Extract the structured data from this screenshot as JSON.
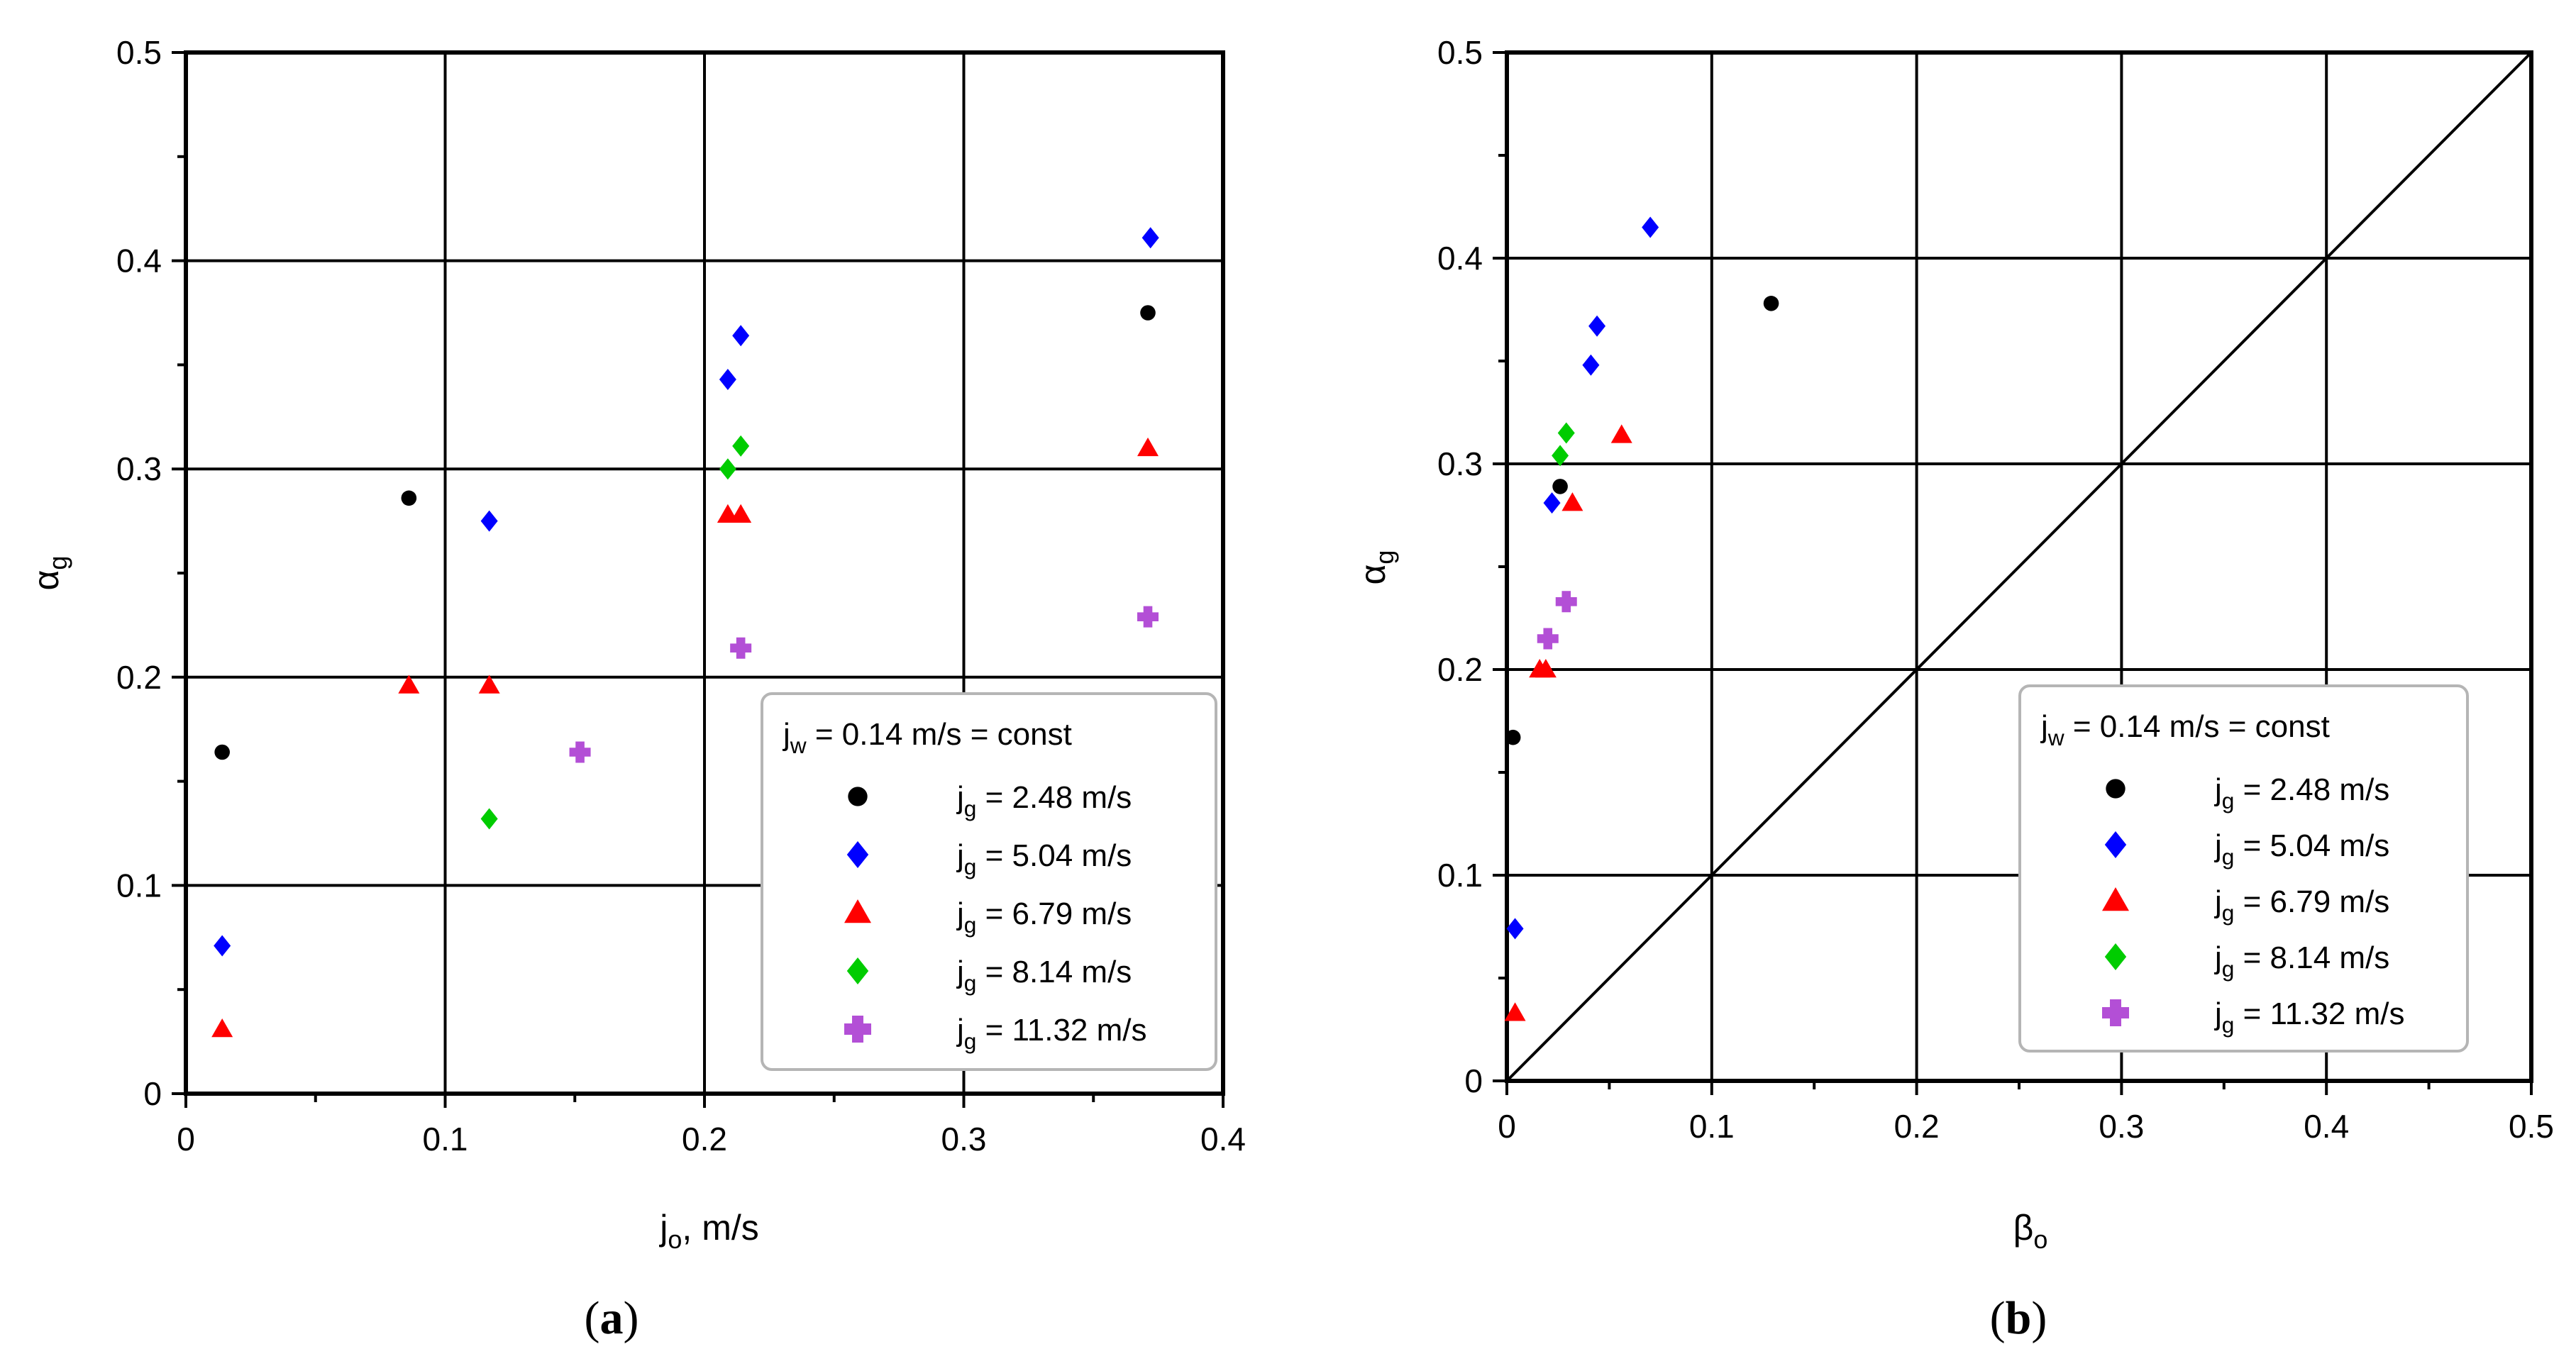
{
  "chart_data": [
    {
      "type": "scatter",
      "panel_label": "(a)",
      "xlabel": {
        "base": "j",
        "sub": "o",
        "rest": ", m/s"
      },
      "ylabel": {
        "base": "α",
        "sub": "g"
      },
      "xlim": [
        0,
        0.4
      ],
      "ylim": [
        0,
        0.5
      ],
      "xticks": [
        "0",
        "0.1",
        "0.2",
        "0.3",
        "0.4"
      ],
      "yticks": [
        "0",
        "0.1",
        "0.2",
        "0.3",
        "0.4",
        "0.5"
      ],
      "grid": true,
      "diagonal": false,
      "legend": {
        "placement": "lower-right",
        "header": {
          "base": "j",
          "sub": "w",
          "rest": " = 0.14 m/s = const"
        }
      },
      "series": [
        {
          "name": {
            "base": "j",
            "sub": "g",
            "rest": " = 2.48 m/s"
          },
          "marker": "circle",
          "color": "#000000",
          "points": [
            [
              0.014,
              0.164
            ],
            [
              0.086,
              0.286
            ],
            [
              0.371,
              0.375
            ]
          ]
        },
        {
          "name": {
            "base": "j",
            "sub": "g",
            "rest": " = 5.04 m/s"
          },
          "marker": "diamond",
          "color": "#0000ff",
          "points": [
            [
              0.014,
              0.071
            ],
            [
              0.117,
              0.275
            ],
            [
              0.209,
              0.343
            ],
            [
              0.214,
              0.364
            ],
            [
              0.372,
              0.411
            ]
          ]
        },
        {
          "name": {
            "base": "j",
            "sub": "g",
            "rest": " = 6.79 m/s"
          },
          "marker": "triangle",
          "color": "#ff0000",
          "points": [
            [
              0.014,
              0.031
            ],
            [
              0.086,
              0.196
            ],
            [
              0.117,
              0.196
            ],
            [
              0.209,
              0.278
            ],
            [
              0.214,
              0.278
            ],
            [
              0.371,
              0.31
            ]
          ]
        },
        {
          "name": {
            "base": "j",
            "sub": "g",
            "rest": " = 8.14 m/s"
          },
          "marker": "diamond",
          "color": "#00cc00",
          "points": [
            [
              0.117,
              0.132
            ],
            [
              0.209,
              0.3
            ],
            [
              0.214,
              0.311
            ]
          ]
        },
        {
          "name": {
            "base": "j",
            "sub": "g",
            "rest": " = 11.32 m/s"
          },
          "marker": "plus",
          "color": "#b34fd6",
          "points": [
            [
              0.152,
              0.164
            ],
            [
              0.214,
              0.214
            ],
            [
              0.371,
              0.229
            ]
          ]
        }
      ]
    },
    {
      "type": "scatter",
      "panel_label": "(b)",
      "xlabel": {
        "base": "β",
        "sub": "o",
        "rest": ""
      },
      "ylabel": {
        "base": "α",
        "sub": "g"
      },
      "xlim": [
        0,
        0.5
      ],
      "ylim": [
        0,
        0.5
      ],
      "xticks": [
        "0",
        "0.1",
        "0.2",
        "0.3",
        "0.4",
        "0.5"
      ],
      "yticks": [
        "0",
        "0.1",
        "0.2",
        "0.3",
        "0.4",
        "0.5"
      ],
      "grid": true,
      "diagonal": true,
      "legend": {
        "placement": "lower-right",
        "header": {
          "base": "j",
          "sub": "w",
          "rest": " = 0.14 m/s = const"
        }
      },
      "series": [
        {
          "name": {
            "base": "j",
            "sub": "g",
            "rest": " = 2.48 m/s"
          },
          "marker": "circle",
          "color": "#000000",
          "points": [
            [
              0.003,
              0.167
            ],
            [
              0.026,
              0.289
            ],
            [
              0.129,
              0.378
            ]
          ]
        },
        {
          "name": {
            "base": "j",
            "sub": "g",
            "rest": " = 5.04 m/s"
          },
          "marker": "diamond",
          "color": "#0000ff",
          "points": [
            [
              0.004,
              0.074
            ],
            [
              0.022,
              0.281
            ],
            [
              0.041,
              0.348
            ],
            [
              0.044,
              0.367
            ],
            [
              0.07,
              0.415
            ]
          ]
        },
        {
          "name": {
            "base": "j",
            "sub": "g",
            "rest": " = 6.79 m/s"
          },
          "marker": "triangle",
          "color": "#ff0000",
          "points": [
            [
              0.004,
              0.033
            ],
            [
              0.016,
              0.2
            ],
            [
              0.019,
              0.2
            ],
            [
              0.032,
              0.281
            ],
            [
              0.056,
              0.314
            ]
          ]
        },
        {
          "name": {
            "base": "j",
            "sub": "g",
            "rest": " = 8.14 m/s"
          },
          "marker": "diamond",
          "color": "#00cc00",
          "points": [
            [
              0.026,
              0.304
            ],
            [
              0.029,
              0.315
            ]
          ]
        },
        {
          "name": {
            "base": "j",
            "sub": "g",
            "rest": " = 11.32 m/s"
          },
          "marker": "plus",
          "color": "#b34fd6",
          "points": [
            [
              0.02,
              0.215
            ],
            [
              0.029,
              0.233
            ]
          ]
        }
      ]
    }
  ]
}
